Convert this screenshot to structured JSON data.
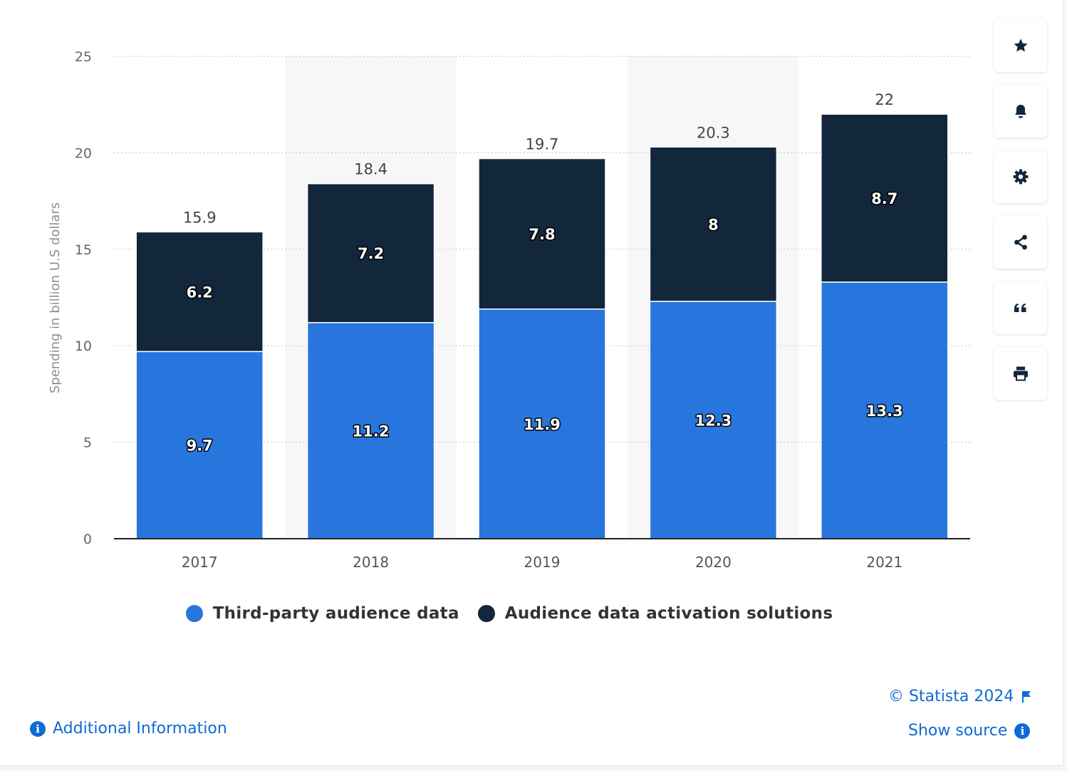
{
  "chart_data": {
    "type": "bar",
    "stacked": true,
    "categories": [
      "2017",
      "2018",
      "2019",
      "2020",
      "2021"
    ],
    "series": [
      {
        "name": "Third-party audience data",
        "values": [
          9.7,
          11.2,
          11.9,
          12.3,
          13.3
        ],
        "color": "#2876dd"
      },
      {
        "name": "Audience data activation solutions",
        "values": [
          6.2,
          7.2,
          7.8,
          8,
          8.7
        ],
        "color": "#12263c"
      }
    ],
    "totals": [
      15.9,
      18.4,
      19.7,
      20.3,
      22
    ],
    "title": "",
    "xlabel": "",
    "ylabel": "Spending in billion U.S dollars",
    "ylim": [
      0,
      25
    ],
    "yticks": [
      0,
      5,
      10,
      15,
      20,
      25
    ],
    "grid": true,
    "legend_position": "bottom"
  },
  "toolbar": {
    "icons": [
      "star-icon",
      "bell-icon",
      "gear-icon",
      "share-icon",
      "quote-icon",
      "print-icon"
    ]
  },
  "footer": {
    "copyright": "© Statista 2024",
    "show_source": "Show source",
    "additional_info": "Additional Information"
  },
  "colors": {
    "accent": "#0e6ad6",
    "series1": "#2876dd",
    "series2": "#12263c"
  }
}
